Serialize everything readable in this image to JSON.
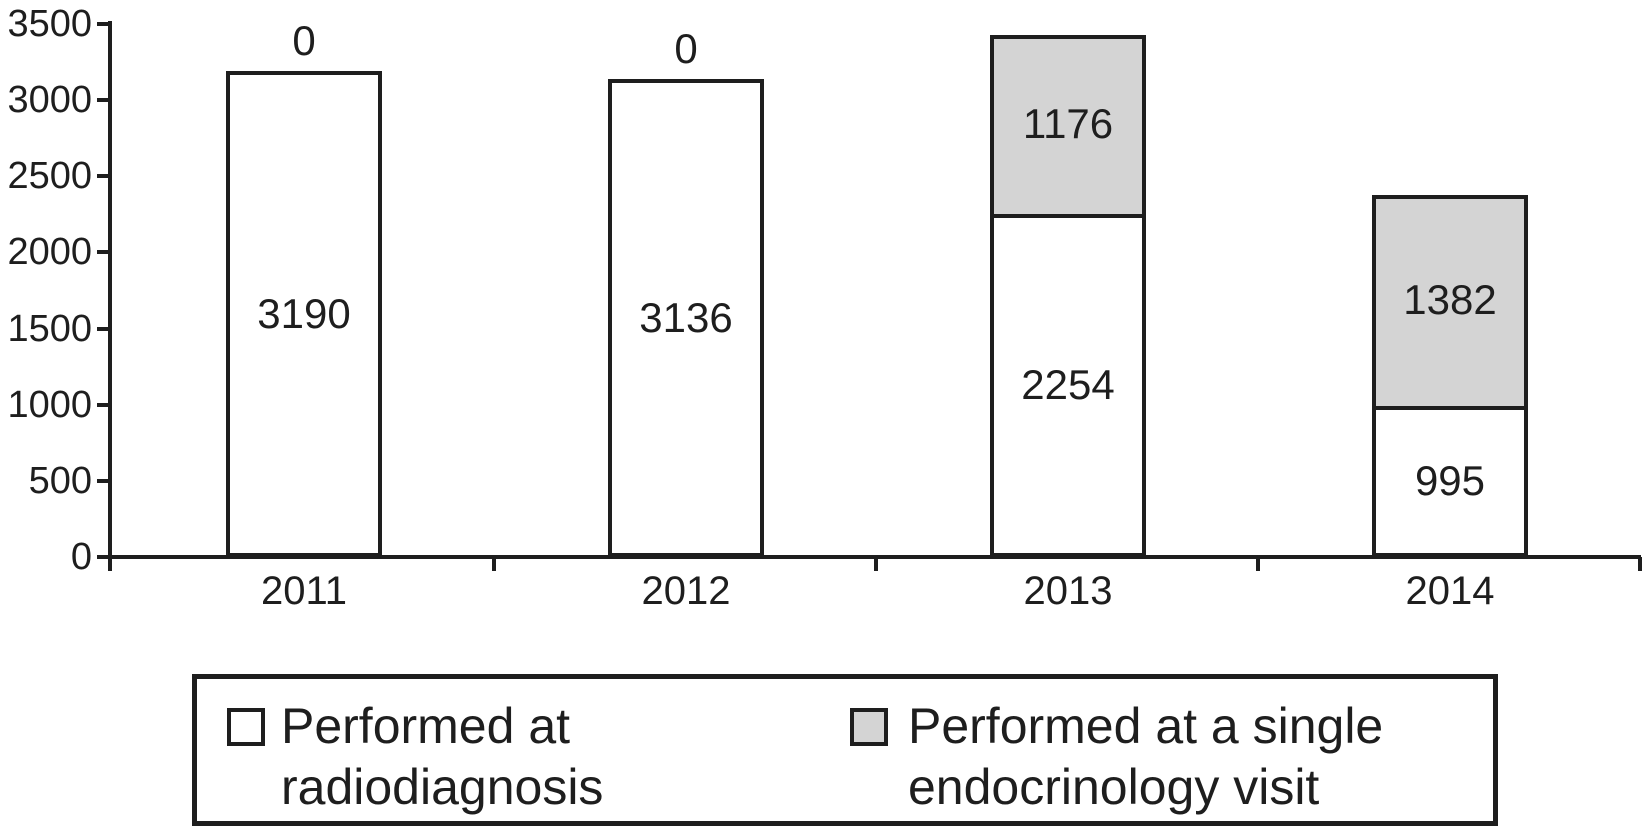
{
  "chart_data": {
    "type": "bar",
    "stacked": true,
    "title": "",
    "xlabel": "",
    "ylabel": "",
    "ylim": [
      0,
      3500
    ],
    "yticks": [
      0,
      500,
      1000,
      1500,
      2000,
      2500,
      3000,
      3500
    ],
    "categories": [
      "2011",
      "2012",
      "2013",
      "2014"
    ],
    "series": [
      {
        "name": "Performed at radiodiagnosis",
        "color": "#ffffff",
        "values": [
          3190,
          3136,
          2254,
          995
        ]
      },
      {
        "name": "Performed at a single endocrinology visit",
        "color": "#d4d4d4",
        "values": [
          0,
          0,
          1176,
          1382
        ]
      }
    ],
    "bar_value_labels_visible": true,
    "grid": false,
    "ink_color": "#1e1e1e",
    "legend": {
      "position": "bottom",
      "border": true,
      "entries": [
        {
          "swatch_color": "#ffffff",
          "lines": [
            "Performed at",
            "radiodiagnosis"
          ]
        },
        {
          "swatch_color": "#d4d4d4",
          "lines": [
            "Performed at a single",
            "endocrinology visit"
          ]
        }
      ]
    }
  }
}
